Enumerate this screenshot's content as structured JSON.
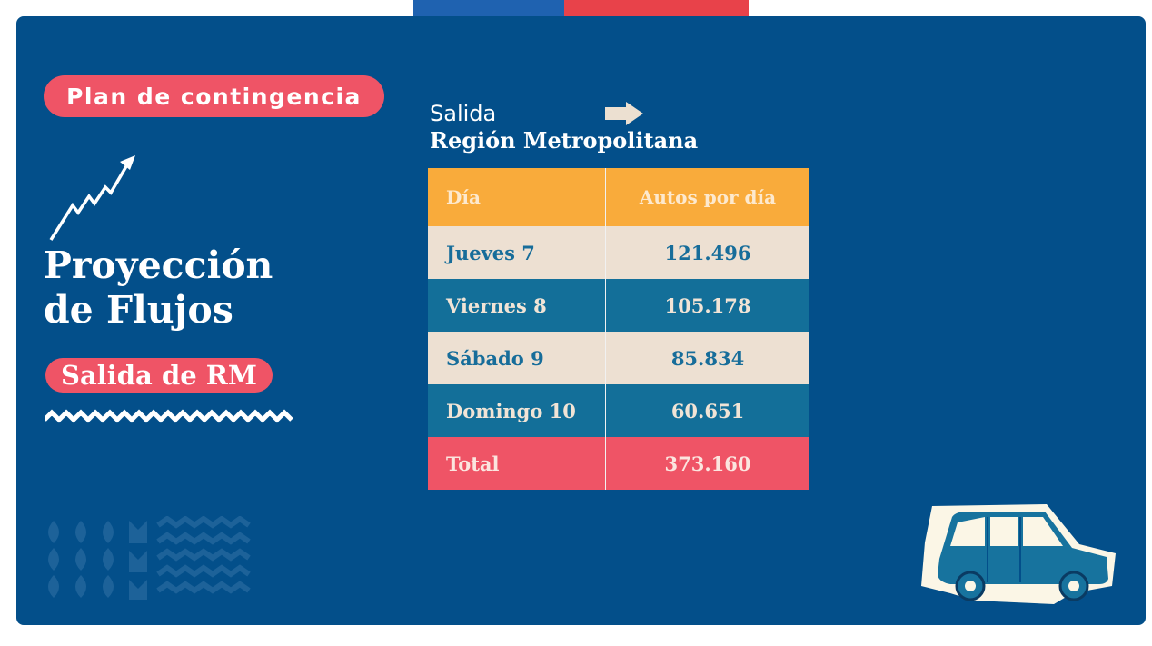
{
  "header": {
    "pill": "Plan de contingencia"
  },
  "left": {
    "title_line1": "Proyección",
    "title_line2": "de Flujos",
    "subtitle_pill": "Salida de RM"
  },
  "right": {
    "subtitle_line1": "Salida",
    "subtitle_line2": "Región Metropolitana",
    "table": {
      "headers": [
        "Día",
        "Autos por día"
      ],
      "rows": [
        {
          "day": "Jueves 7",
          "value": "121.496"
        },
        {
          "day": "Viernes 8",
          "value": "105.178"
        },
        {
          "day": "Sábado 9",
          "value": "85.834"
        },
        {
          "day": "Domingo 10",
          "value": "60.651"
        }
      ],
      "total": {
        "label": "Total",
        "value": "373.160"
      }
    }
  },
  "colors": {
    "background": "#034f8a",
    "accent_pink": "#ef5466",
    "header_orange": "#f9ab3b",
    "row_light": "#ede0d2",
    "row_dark": "#136f99",
    "flag_blue": "#1f62b0",
    "flag_red": "#e8424a"
  },
  "icons": [
    "trend-arrow-icon",
    "right-arrow-icon",
    "car-icon",
    "zigzag-divider",
    "decorative-pattern"
  ]
}
